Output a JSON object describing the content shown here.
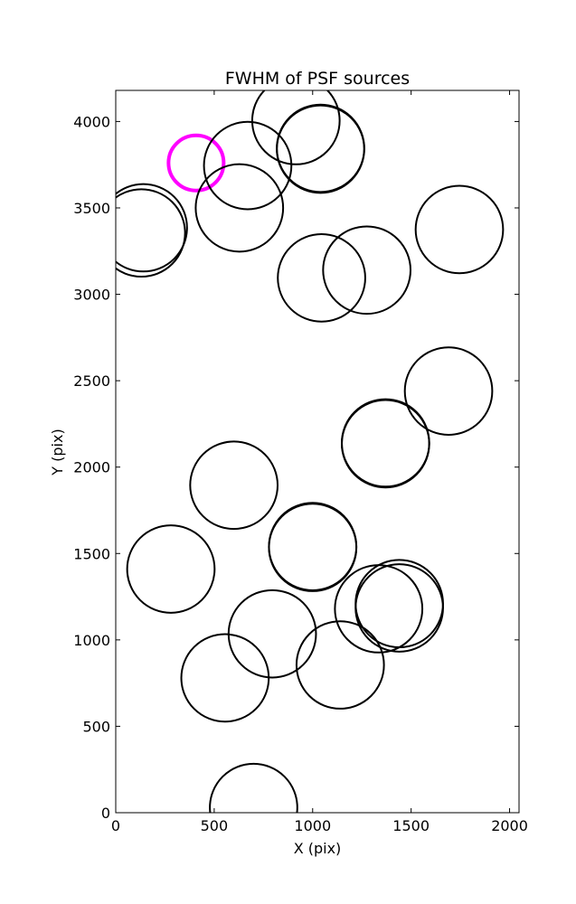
{
  "chart_data": {
    "type": "scatter",
    "title": "FWHM of PSF sources",
    "xlabel": "X (pix)",
    "ylabel": "Y (pix)",
    "xlim": [
      0,
      2048
    ],
    "ylim": [
      0,
      4180
    ],
    "xticks": [
      0,
      500,
      1000,
      1500,
      2000
    ],
    "yticks": [
      0,
      500,
      1000,
      1500,
      2000,
      2500,
      3000,
      3500,
      4000
    ],
    "grid": false,
    "default_color": "#000000",
    "highlight_color": "#ff00ff",
    "circle_radius_units": "x-axis pixels",
    "sources": [
      {
        "x": 140,
        "y": 3385,
        "r": 222
      },
      {
        "x": 130,
        "y": 3355,
        "r": 222
      },
      {
        "x": 408,
        "y": 3760,
        "r": 140,
        "highlight": true
      },
      {
        "x": 628,
        "y": 3500,
        "r": 222
      },
      {
        "x": 670,
        "y": 3745,
        "r": 222
      },
      {
        "x": 915,
        "y": 4005,
        "r": 222
      },
      {
        "x": 1040,
        "y": 3840,
        "r": 222
      },
      {
        "x": 1040,
        "y": 3845,
        "r": 222
      },
      {
        "x": 1745,
        "y": 3375,
        "r": 222
      },
      {
        "x": 1045,
        "y": 3095,
        "r": 222
      },
      {
        "x": 1275,
        "y": 3140,
        "r": 222
      },
      {
        "x": 1690,
        "y": 2440,
        "r": 222
      },
      {
        "x": 1370,
        "y": 2140,
        "r": 222
      },
      {
        "x": 1370,
        "y": 2135,
        "r": 222
      },
      {
        "x": 600,
        "y": 1895,
        "r": 222
      },
      {
        "x": 1000,
        "y": 1540,
        "r": 222
      },
      {
        "x": 1000,
        "y": 1535,
        "r": 222
      },
      {
        "x": 280,
        "y": 1410,
        "r": 222
      },
      {
        "x": 1335,
        "y": 1180,
        "r": 222
      },
      {
        "x": 1440,
        "y": 1210,
        "r": 222
      },
      {
        "x": 1440,
        "y": 1185,
        "r": 222
      },
      {
        "x": 795,
        "y": 1035,
        "r": 222
      },
      {
        "x": 555,
        "y": 780,
        "r": 222
      },
      {
        "x": 1140,
        "y": 855,
        "r": 222
      },
      {
        "x": 700,
        "y": 30,
        "r": 222
      }
    ]
  }
}
